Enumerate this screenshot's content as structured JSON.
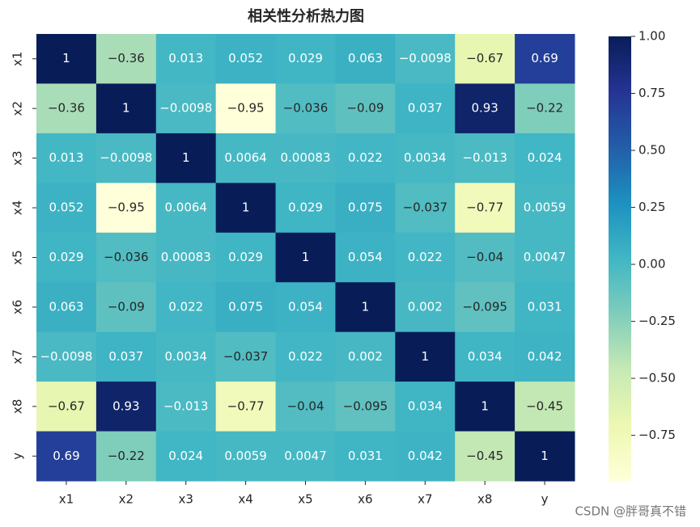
{
  "chart_data": {
    "type": "heatmap",
    "title": "相关性分析热力图",
    "x_categories": [
      "x1",
      "x2",
      "x3",
      "x4",
      "x5",
      "x6",
      "x7",
      "x8",
      "y"
    ],
    "y_categories": [
      "x1",
      "x2",
      "x3",
      "x4",
      "x5",
      "x6",
      "x7",
      "x8",
      "y"
    ],
    "values": [
      [
        1,
        -0.36,
        0.013,
        0.052,
        0.029,
        0.063,
        -0.0098,
        -0.67,
        0.69
      ],
      [
        -0.36,
        1,
        -0.0098,
        -0.95,
        -0.036,
        -0.09,
        0.037,
        0.93,
        -0.22
      ],
      [
        0.013,
        -0.0098,
        1,
        0.0064,
        0.00083,
        0.022,
        0.0034,
        -0.013,
        0.024
      ],
      [
        0.052,
        -0.95,
        0.0064,
        1,
        0.029,
        0.075,
        -0.037,
        -0.77,
        0.0059
      ],
      [
        0.029,
        -0.036,
        0.00083,
        0.029,
        1,
        0.054,
        0.022,
        -0.04,
        0.0047
      ],
      [
        0.063,
        -0.09,
        0.022,
        0.075,
        0.054,
        1,
        0.002,
        -0.095,
        0.031
      ],
      [
        -0.0098,
        0.037,
        0.0034,
        -0.037,
        0.022,
        0.002,
        1,
        0.034,
        0.042
      ],
      [
        -0.67,
        0.93,
        -0.013,
        -0.77,
        -0.04,
        -0.095,
        0.034,
        1,
        -0.45
      ],
      [
        0.69,
        -0.22,
        0.024,
        0.0059,
        0.0047,
        0.031,
        0.042,
        -0.45,
        1
      ]
    ],
    "value_labels": [
      [
        "1",
        "−0.36",
        "0.013",
        "0.052",
        "0.029",
        "0.063",
        "−0.0098",
        "−0.67",
        "0.69"
      ],
      [
        "−0.36",
        "1",
        "−0.0098",
        "−0.95",
        "−0.036",
        "−0.09",
        "0.037",
        "0.93",
        "−0.22"
      ],
      [
        "0.013",
        "−0.0098",
        "1",
        "0.0064",
        "0.00083",
        "0.022",
        "0.0034",
        "−0.013",
        "0.024"
      ],
      [
        "0.052",
        "−0.95",
        "0.0064",
        "1",
        "0.029",
        "0.075",
        "−0.037",
        "−0.77",
        "0.0059"
      ],
      [
        "0.029",
        "−0.036",
        "0.00083",
        "0.029",
        "1",
        "0.054",
        "0.022",
        "−0.04",
        "0.0047"
      ],
      [
        "0.063",
        "−0.09",
        "0.022",
        "0.075",
        "0.054",
        "1",
        "0.002",
        "−0.095",
        "0.031"
      ],
      [
        "−0.0098",
        "0.037",
        "0.0034",
        "−0.037",
        "0.022",
        "0.002",
        "1",
        "0.034",
        "0.042"
      ],
      [
        "−0.67",
        "0.93",
        "−0.013",
        "−0.77",
        "−0.04",
        "−0.095",
        "0.034",
        "1",
        "−0.45"
      ],
      [
        "0.69",
        "−0.22",
        "0.024",
        "0.0059",
        "0.0047",
        "0.031",
        "0.042",
        "−0.45",
        "1"
      ]
    ],
    "colormap": "YlGnBu",
    "colors": [
      "#ffffd9",
      "#edf8b1",
      "#c7e9b4",
      "#7fcdbb",
      "#41b6c4",
      "#1d91c0",
      "#225ea8",
      "#253494",
      "#081d58"
    ],
    "clim": [
      -0.95,
      1
    ],
    "colorbar_ticks": [
      {
        "value": 1,
        "label": "1.00"
      },
      {
        "value": 0.75,
        "label": "0.75"
      },
      {
        "value": 0.5,
        "label": "0.50"
      },
      {
        "value": 0.25,
        "label": "0.25"
      },
      {
        "value": 0,
        "label": "0.00"
      },
      {
        "value": -0.25,
        "label": "−0.25"
      },
      {
        "value": -0.5,
        "label": "−0.50"
      },
      {
        "value": -0.75,
        "label": "−0.75"
      }
    ],
    "watermark": "CSDN @胖哥真不错"
  }
}
